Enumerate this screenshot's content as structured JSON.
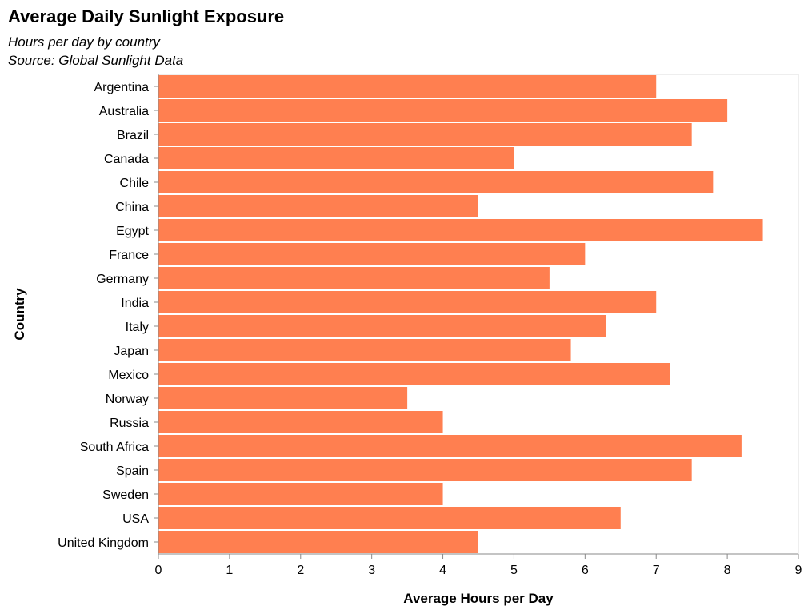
{
  "chart_data": {
    "type": "bar",
    "orientation": "horizontal",
    "title": "Average Daily Sunlight Exposure",
    "subtitle": [
      "Hours per day by country",
      "Source: Global Sunlight Data"
    ],
    "xlabel": "Average Hours per Day",
    "ylabel": "Country",
    "xlim": [
      0,
      9
    ],
    "xticks": [
      0,
      1,
      2,
      3,
      4,
      5,
      6,
      7,
      8,
      9
    ],
    "grid": false,
    "bar_color": "#ff7f50",
    "categories": [
      "Argentina",
      "Australia",
      "Brazil",
      "Canada",
      "Chile",
      "China",
      "Egypt",
      "France",
      "Germany",
      "India",
      "Italy",
      "Japan",
      "Mexico",
      "Norway",
      "Russia",
      "South Africa",
      "Spain",
      "Sweden",
      "USA",
      "United Kingdom"
    ],
    "values": [
      7.0,
      8.0,
      7.5,
      5.0,
      7.8,
      4.5,
      8.5,
      6.0,
      5.5,
      7.0,
      6.3,
      5.8,
      7.2,
      3.5,
      4.0,
      8.2,
      7.5,
      4.0,
      6.5,
      4.5
    ]
  }
}
